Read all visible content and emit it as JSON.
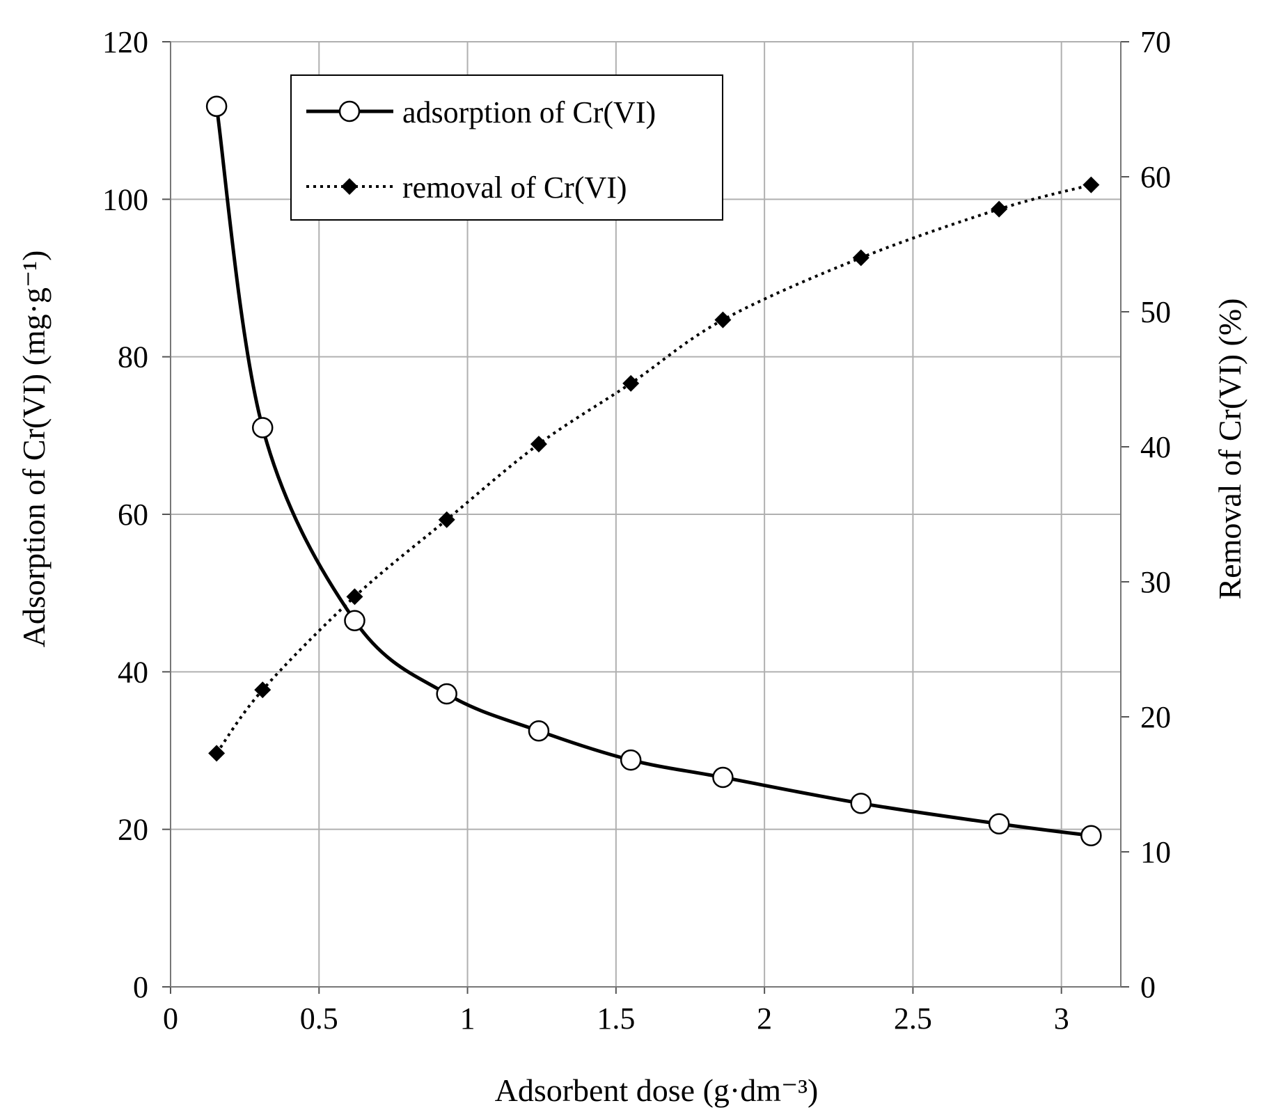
{
  "chart_data": {
    "type": "line",
    "title": "",
    "xlabel": "Adsorbent dose (g·dm⁻³)",
    "ylabel_left": "Adsorption of Cr(VI) (mg·g⁻¹)",
    "ylabel_right": "Removal of Cr(VI) (%)",
    "xlim": [
      0,
      3.2
    ],
    "ylim_left": [
      0,
      120
    ],
    "ylim_right": [
      0,
      70
    ],
    "x_ticks": [
      "0",
      "0.5",
      "1",
      "1.5",
      "2",
      "2.5",
      "3"
    ],
    "y_left_ticks": [
      "0",
      "20",
      "40",
      "60",
      "80",
      "100",
      "120"
    ],
    "y_right_ticks": [
      "0",
      "10",
      "20",
      "30",
      "40",
      "50",
      "60",
      "70"
    ],
    "grid": true,
    "legend_position": "top-left",
    "series": [
      {
        "name": "adsorption of Cr(VI)",
        "axis": "left",
        "style": "solid",
        "marker": "open-circle",
        "x": [
          0.155,
          0.31,
          0.62,
          0.93,
          1.24,
          1.55,
          1.86,
          2.325,
          2.79,
          3.1
        ],
        "values": [
          111.8,
          71.0,
          46.5,
          37.2,
          32.5,
          28.8,
          26.6,
          23.3,
          20.7,
          19.2
        ]
      },
      {
        "name": "removal of Cr(VI)",
        "axis": "right",
        "style": "dotted",
        "marker": "filled-diamond",
        "x": [
          0.155,
          0.31,
          0.62,
          0.93,
          1.24,
          1.55,
          1.86,
          2.325,
          2.79,
          3.1
        ],
        "values": [
          17.3,
          22.0,
          28.9,
          34.6,
          40.2,
          44.7,
          49.4,
          54.0,
          57.6,
          59.4
        ]
      }
    ],
    "colors": {
      "line": "#000000",
      "grid": "#b0b0b0",
      "marker_fill_open": "#ffffff"
    }
  }
}
